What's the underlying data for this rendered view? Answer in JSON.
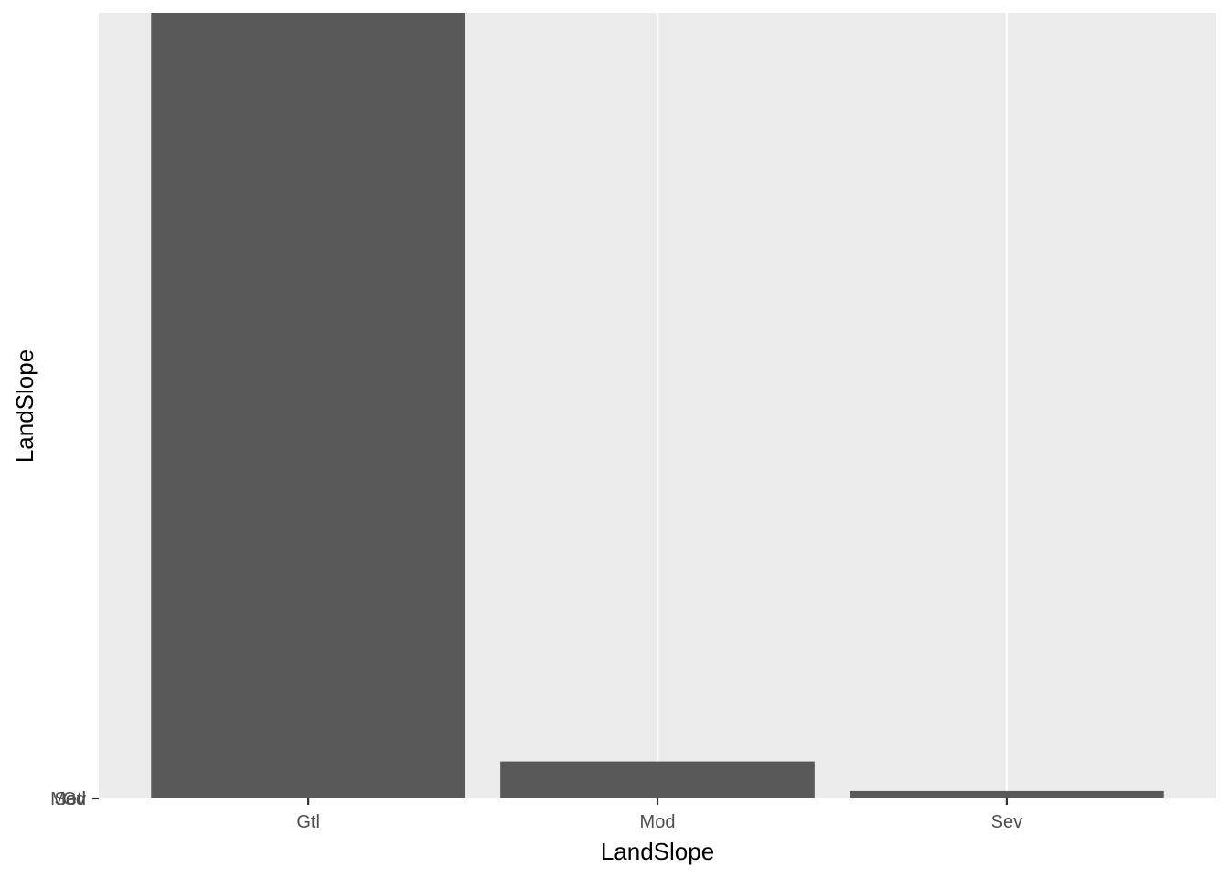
{
  "chart_data": {
    "type": "bar",
    "categories": [
      "Gtl",
      "Mod",
      "Sev"
    ],
    "values": [
      1382,
      65,
      13
    ],
    "title": "",
    "xlabel": "LandSlope",
    "ylabel": "LandSlope",
    "y_tick_labels": [
      "Gtl",
      "Mod",
      "Sev"
    ],
    "ylim": [
      0,
      1382
    ],
    "grid": true,
    "legend": "none",
    "colors": {
      "panel_background": "#EBEBEB",
      "bar_fill": "#595959",
      "grid_line": "#FFFFFF",
      "tick_text": "#4D4D4D",
      "axis_title": "#000000"
    }
  }
}
